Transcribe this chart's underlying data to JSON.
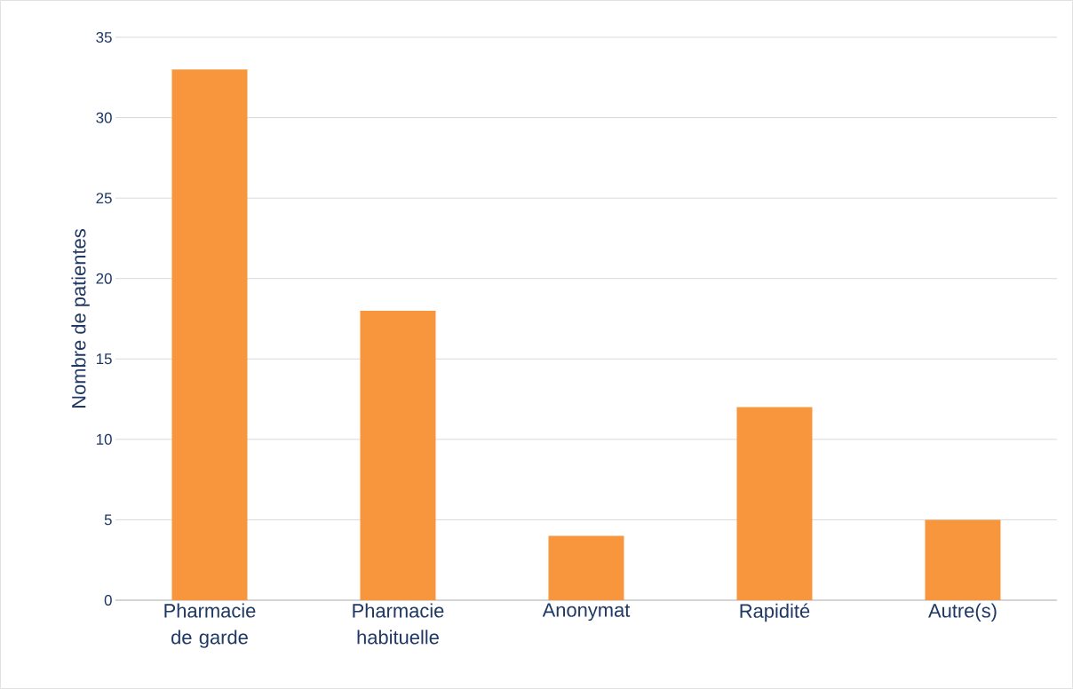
{
  "chart_data": {
    "type": "bar",
    "ylabel": "Nombre de patientes",
    "categories": [
      "Pharmacie de garde",
      "Pharmacie habituelle",
      "Anonymat",
      "Rapidité",
      "Autre(s)"
    ],
    "values": [
      33,
      18,
      4,
      12,
      5
    ],
    "color": "#f7963c",
    "ylim": [
      0,
      35
    ],
    "yticks": [
      0,
      5,
      10,
      15,
      20,
      25,
      30,
      35
    ],
    "grid": "y"
  }
}
